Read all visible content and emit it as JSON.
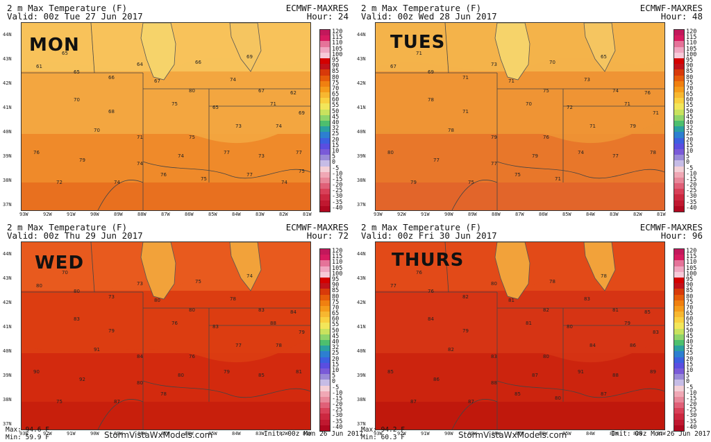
{
  "header_line1": "2 m Max Temperature (F)",
  "model": "ECMWF-MAXRES",
  "lat_labels": [
    "44N",
    "43N",
    "42N",
    "41N",
    "40N",
    "39N",
    "38N",
    "37N"
  ],
  "lon_labels": [
    "93W",
    "92W",
    "91W",
    "90W",
    "89W",
    "88W",
    "87W",
    "86W",
    "85W",
    "84W",
    "83W",
    "82W",
    "81W"
  ],
  "scale_labels": [
    "120",
    "115",
    "110",
    "105",
    "100",
    "95",
    "90",
    "85",
    "80",
    "75",
    "70",
    "65",
    "60",
    "55",
    "50",
    "45",
    "40",
    "32",
    "25",
    "20",
    "15",
    "10",
    "5",
    "0",
    "-5",
    "-10",
    "-15",
    "-20",
    "-25",
    "-30",
    "-35",
    "-40"
  ],
  "scale_colors": [
    "#c2185b",
    "#d81b60",
    "#e57399",
    "#f0a6c0",
    "#f7c9d8",
    "#d40000",
    "#c1121a",
    "#d83a0a",
    "#e65c0a",
    "#f08010",
    "#f59b1a",
    "#f7b730",
    "#f9d040",
    "#f2e65a",
    "#c9e25e",
    "#8fd46a",
    "#4dbf6e",
    "#2aa0a0",
    "#2d7fd0",
    "#3c5fe0",
    "#5a4ee0",
    "#7a5ad8",
    "#9a8ad8",
    "#c6bce6",
    "#f4cfd6",
    "#f0a8b5",
    "#e8889a",
    "#e06078",
    "#d84058",
    "#cc2840",
    "#c01830",
    "#b00820"
  ],
  "brand": "StormVistaWxModels.com",
  "panels": [
    {
      "valid": "Valid: 00z Tue 27 Jun 2017",
      "hour": "Hour: 24",
      "day": "MON",
      "values": [
        "65",
        "64",
        "66",
        "69",
        "61",
        "65",
        "66",
        "67",
        "80",
        "74",
        "67",
        "62",
        "70",
        "68",
        "75",
        "65",
        "71",
        "69",
        "70",
        "71",
        "75",
        "73",
        "74",
        "76",
        "79",
        "74",
        "74",
        "77",
        "73",
        "77",
        "72",
        "74",
        "76",
        "75",
        "77",
        "74",
        "75"
      ]
    },
    {
      "valid": "Valid: 00z Wed 28 Jun 2017",
      "hour": "Hour: 48",
      "day": "TUES",
      "values": [
        "71",
        "73",
        "70",
        "65",
        "67",
        "69",
        "71",
        "71",
        "75",
        "73",
        "74",
        "76",
        "78",
        "71",
        "70",
        "72",
        "71",
        "71",
        "78",
        "79",
        "76",
        "71",
        "79",
        "80",
        "77",
        "77",
        "79",
        "74",
        "77",
        "78",
        "79",
        "75",
        "75",
        "71"
      ]
    },
    {
      "valid": "Valid: 00z Thu 29 Jun 2017",
      "hour": "Hour: 72",
      "day": "WED",
      "values": [
        "70",
        "73",
        "75",
        "74",
        "80",
        "80",
        "73",
        "80",
        "80",
        "78",
        "83",
        "84",
        "83",
        "79",
        "76",
        "83",
        "88",
        "79",
        "91",
        "84",
        "76",
        "77",
        "78",
        "90",
        "92",
        "80",
        "80",
        "79",
        "85",
        "81",
        "75",
        "87",
        "78"
      ]
    },
    {
      "valid": "Valid: 00z Fri 30 Jun 2017",
      "hour": "Hour: 96",
      "day": "THURS",
      "values": [
        "76",
        "80",
        "78",
        "78",
        "77",
        "76",
        "82",
        "81",
        "82",
        "83",
        "81",
        "85",
        "84",
        "79",
        "81",
        "80",
        "79",
        "83",
        "82",
        "83",
        "80",
        "84",
        "86",
        "85",
        "86",
        "88",
        "87",
        "91",
        "88",
        "89",
        "87",
        "87",
        "85",
        "80",
        "87"
      ]
    }
  ],
  "footer": {
    "left_stats": [
      [
        "Max: 94.6 F",
        "Min: 59.9 F"
      ],
      [
        "Max: 94.2 F",
        "Min: 60.3 F"
      ]
    ],
    "init": "Init: 00z Mon 26 Jun 2017"
  }
}
